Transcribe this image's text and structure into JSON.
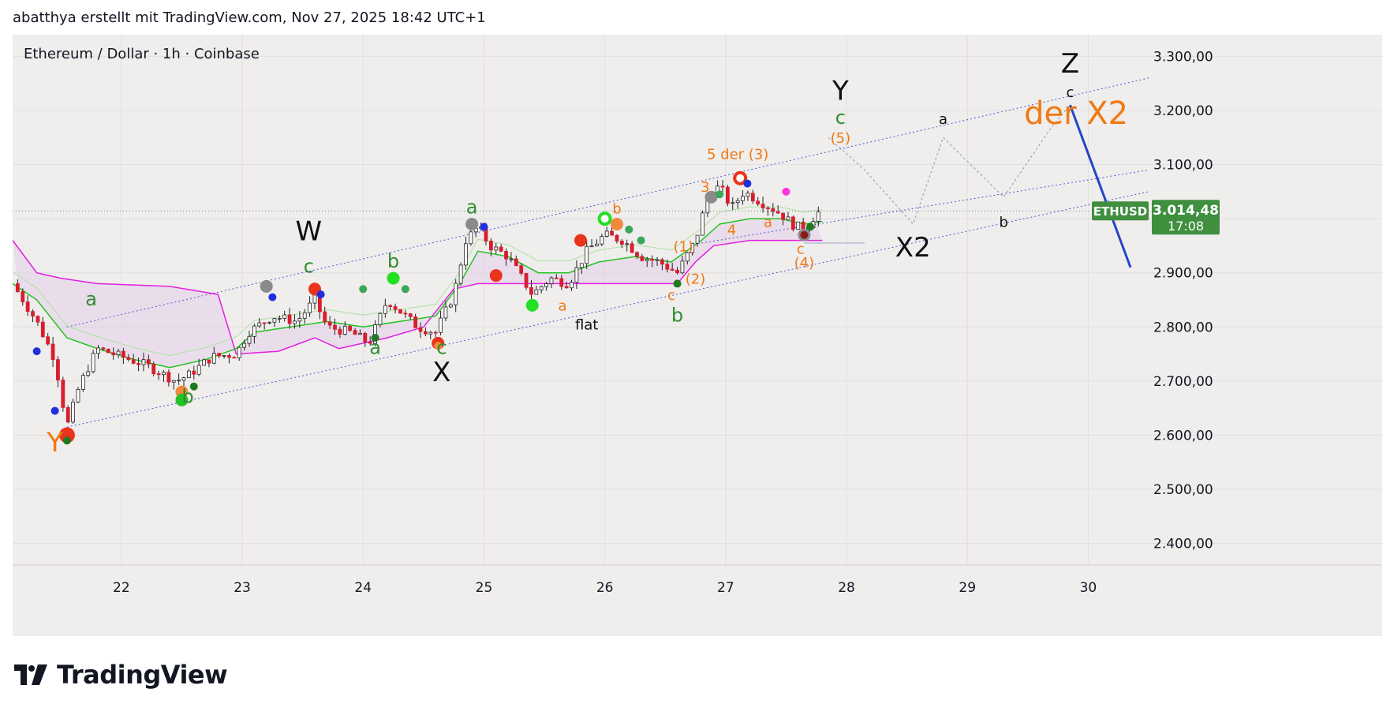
{
  "header": {
    "snapshot_credit": "abatthya erstellt mit TradingView.com, Nov 27, 2025 18:42 UTC+1"
  },
  "symbol": {
    "title": "Ethereum / Dollar · 1h · Coinbase"
  },
  "brand": {
    "name": "TradingView"
  },
  "colors": {
    "background": "#f0eded",
    "grid": "#e1dede",
    "up": "#ffffff",
    "down": "#d81e2d",
    "wick": "#222222",
    "green_line": "#22c322",
    "magenta_line": "#e21ee2",
    "channel": "#4a5bd0",
    "projection": "#9aa6c2",
    "forecast": "#2446c4",
    "price_badge": "#3f8f3f",
    "wave_black": "#111111",
    "wave_green": "#2f8f2f",
    "wave_orange": "#ef7a12"
  },
  "chart_data": {
    "type": "candlestick",
    "symbol": "ETHUSD",
    "exchange": "Coinbase",
    "interval": "1h",
    "x_axis": {
      "ticks": [
        "22",
        "23",
        "24",
        "25",
        "26",
        "27",
        "28",
        "29",
        "30"
      ],
      "range_days": [
        21.1,
        30.5
      ]
    },
    "y_axis": {
      "ticks": [
        "3.300,00",
        "3.200,00",
        "3.100,00",
        "3.000,00",
        "2.900,00",
        "2.800,00",
        "2.700,00",
        "2.600,00",
        "2.500,00",
        "2.400,00"
      ],
      "ylim": [
        2360,
        3340
      ]
    },
    "grid": true,
    "last_price": {
      "symbol_label": "ETHUSD",
      "value": 3014.48,
      "label": "3.014,48",
      "countdown": "17:08"
    },
    "price_path": [
      [
        21.1,
        2880
      ],
      [
        21.3,
        2810
      ],
      [
        21.45,
        2740
      ],
      [
        21.55,
        2615
      ],
      [
        21.65,
        2690
      ],
      [
        21.8,
        2760
      ],
      [
        22.0,
        2745
      ],
      [
        22.2,
        2730
      ],
      [
        22.45,
        2700
      ],
      [
        22.55,
        2710
      ],
      [
        22.75,
        2745
      ],
      [
        22.95,
        2750
      ],
      [
        23.05,
        2790
      ],
      [
        23.25,
        2820
      ],
      [
        23.45,
        2810
      ],
      [
        23.6,
        2850
      ],
      [
        23.7,
        2800
      ],
      [
        23.9,
        2790
      ],
      [
        24.05,
        2770
      ],
      [
        24.2,
        2850
      ],
      [
        24.3,
        2830
      ],
      [
        24.45,
        2800
      ],
      [
        24.6,
        2790
      ],
      [
        24.75,
        2860
      ],
      [
        24.85,
        2960
      ],
      [
        24.95,
        2985
      ],
      [
        25.05,
        2950
      ],
      [
        25.2,
        2930
      ],
      [
        25.4,
        2860
      ],
      [
        25.55,
        2890
      ],
      [
        25.7,
        2880
      ],
      [
        25.85,
        2940
      ],
      [
        26.0,
        2970
      ],
      [
        26.15,
        2960
      ],
      [
        26.3,
        2930
      ],
      [
        26.45,
        2920
      ],
      [
        26.6,
        2900
      ],
      [
        26.75,
        2960
      ],
      [
        26.85,
        3040
      ],
      [
        26.95,
        3060
      ],
      [
        27.05,
        3020
      ],
      [
        27.15,
        3050
      ],
      [
        27.3,
        3030
      ],
      [
        27.45,
        3010
      ],
      [
        27.55,
        2990
      ],
      [
        27.65,
        2980
      ],
      [
        27.75,
        3010
      ],
      [
        27.8,
        3014.48
      ]
    ],
    "indicators": {
      "green_line": [
        [
          21.1,
          2880
        ],
        [
          21.3,
          2850
        ],
        [
          21.55,
          2780
        ],
        [
          21.8,
          2760
        ],
        [
          22.1,
          2740
        ],
        [
          22.4,
          2725
        ],
        [
          22.7,
          2740
        ],
        [
          22.95,
          2760
        ],
        [
          23.1,
          2790
        ],
        [
          23.4,
          2800
        ],
        [
          23.7,
          2810
        ],
        [
          24.0,
          2800
        ],
        [
          24.3,
          2810
        ],
        [
          24.6,
          2820
        ],
        [
          24.8,
          2880
        ],
        [
          24.95,
          2940
        ],
        [
          25.2,
          2930
        ],
        [
          25.45,
          2900
        ],
        [
          25.7,
          2900
        ],
        [
          25.95,
          2920
        ],
        [
          26.25,
          2930
        ],
        [
          26.55,
          2920
        ],
        [
          26.8,
          2960
        ],
        [
          26.95,
          2990
        ],
        [
          27.2,
          3000
        ],
        [
          27.45,
          3000
        ],
        [
          27.65,
          2990
        ],
        [
          27.8,
          2995
        ]
      ],
      "magenta_line": [
        [
          21.1,
          2960
        ],
        [
          21.3,
          2900
        ],
        [
          21.5,
          2890
        ],
        [
          21.8,
          2880
        ],
        [
          22.4,
          2875
        ],
        [
          22.8,
          2860
        ],
        [
          22.95,
          2750
        ],
        [
          23.3,
          2755
        ],
        [
          23.6,
          2780
        ],
        [
          23.8,
          2760
        ],
        [
          24.2,
          2780
        ],
        [
          24.5,
          2800
        ],
        [
          24.75,
          2870
        ],
        [
          24.95,
          2880
        ],
        [
          25.4,
          2880
        ],
        [
          25.8,
          2880
        ],
        [
          26.2,
          2880
        ],
        [
          26.6,
          2880
        ],
        [
          26.75,
          2920
        ],
        [
          26.9,
          2950
        ],
        [
          27.2,
          2960
        ],
        [
          27.5,
          2960
        ],
        [
          27.8,
          2960
        ]
      ]
    },
    "channel": {
      "upper": [
        [
          21.55,
          2800
        ],
        [
          30.5,
          3260
        ]
      ],
      "middle": [
        [
          26.8,
          2955
        ],
        [
          30.5,
          3090
        ]
      ],
      "lower": [
        [
          21.55,
          2615
        ],
        [
          30.5,
          3050
        ]
      ]
    },
    "projection_path": [
      [
        27.85,
        3150
      ],
      [
        28.15,
        3090
      ],
      [
        28.55,
        2990
      ],
      [
        28.8,
        3150
      ],
      [
        29.3,
        3040
      ],
      [
        29.7,
        3170
      ],
      [
        29.85,
        3210
      ]
    ],
    "forecast_line": [
      [
        29.85,
        3210
      ],
      [
        30.35,
        2910
      ]
    ],
    "wave_labels": [
      {
        "text": "Y",
        "x": 21.45,
        "y": 2570,
        "color": "orange",
        "size": "large"
      },
      {
        "text": "a",
        "x": 21.75,
        "y": 2840,
        "color": "green",
        "size": "medium"
      },
      {
        "text": "b",
        "x": 22.55,
        "y": 2660,
        "color": "green",
        "size": "medium"
      },
      {
        "text": "W",
        "x": 23.55,
        "y": 2960,
        "color": "black",
        "size": "large"
      },
      {
        "text": "c",
        "x": 23.55,
        "y": 2900,
        "color": "green",
        "size": "medium"
      },
      {
        "text": "a",
        "x": 24.1,
        "y": 2750,
        "color": "green",
        "size": "medium"
      },
      {
        "text": "b",
        "x": 24.25,
        "y": 2910,
        "color": "green",
        "size": "medium"
      },
      {
        "text": "c",
        "x": 24.65,
        "y": 2750,
        "color": "green",
        "size": "medium"
      },
      {
        "text": "X",
        "x": 24.65,
        "y": 2700,
        "color": "black",
        "size": "large"
      },
      {
        "text": "a",
        "x": 24.9,
        "y": 3010,
        "color": "green",
        "size": "medium"
      },
      {
        "text": "a",
        "x": 25.65,
        "y": 2830,
        "color": "orange",
        "size": "small"
      },
      {
        "text": "flat",
        "x": 25.85,
        "y": 2795,
        "color": "black",
        "size": "small"
      },
      {
        "text": "b",
        "x": 26.1,
        "y": 3010,
        "color": "orange",
        "size": "small"
      },
      {
        "text": "c",
        "x": 26.55,
        "y": 2850,
        "color": "orange",
        "size": "small"
      },
      {
        "text": "b",
        "x": 26.6,
        "y": 2810,
        "color": "green",
        "size": "medium"
      },
      {
        "text": "(1)",
        "x": 26.65,
        "y": 2940,
        "color": "orange",
        "size": "small"
      },
      {
        "text": "(2)",
        "x": 26.75,
        "y": 2880,
        "color": "orange",
        "size": "small"
      },
      {
        "text": "3",
        "x": 26.83,
        "y": 3050,
        "color": "orange",
        "size": "small"
      },
      {
        "text": "4",
        "x": 27.05,
        "y": 2970,
        "color": "orange",
        "size": "small"
      },
      {
        "text": "5 der (3)",
        "x": 27.1,
        "y": 3110,
        "color": "orange",
        "size": "small"
      },
      {
        "text": "a",
        "x": 27.35,
        "y": 2985,
        "color": "orange",
        "size": "small"
      },
      {
        "text": "c",
        "x": 27.62,
        "y": 2935,
        "color": "orange",
        "size": "small"
      },
      {
        "text": "(4)",
        "x": 27.65,
        "y": 2910,
        "color": "orange",
        "size": "small"
      },
      {
        "text": "Y",
        "x": 27.95,
        "y": 3220,
        "color": "black",
        "size": "large"
      },
      {
        "text": "c",
        "x": 27.95,
        "y": 3175,
        "color": "green",
        "size": "medium"
      },
      {
        "text": "(5)",
        "x": 27.95,
        "y": 3140,
        "color": "orange",
        "size": "small"
      },
      {
        "text": "X2",
        "x": 28.55,
        "y": 2930,
        "color": "black",
        "size": "large"
      },
      {
        "text": "a",
        "x": 28.8,
        "y": 3175,
        "color": "black",
        "size": "small"
      },
      {
        "text": "b",
        "x": 29.3,
        "y": 2985,
        "color": "black",
        "size": "small"
      },
      {
        "text": "Z",
        "x": 29.85,
        "y": 3270,
        "color": "black",
        "size": "large"
      },
      {
        "text": "c",
        "x": 29.85,
        "y": 3225,
        "color": "black",
        "size": "small"
      },
      {
        "text": "der X2",
        "x": 29.9,
        "y": 3175,
        "color": "orange",
        "size": "xlarge"
      }
    ],
    "signal_markers": [
      {
        "x": 21.55,
        "y": 2600,
        "color": "#e8341c",
        "size": "large"
      },
      {
        "x": 21.55,
        "y": 2590,
        "color": "#1e7a1e",
        "size": "small"
      },
      {
        "x": 21.3,
        "y": 2755,
        "color": "#1f2fe0",
        "size": "small"
      },
      {
        "x": 21.45,
        "y": 2645,
        "color": "#1f2fe0",
        "size": "small"
      },
      {
        "x": 22.5,
        "y": 2680,
        "color": "#f08a3c",
        "size": "medium"
      },
      {
        "x": 22.5,
        "y": 2665,
        "color": "#22c322",
        "size": "medium"
      },
      {
        "x": 22.6,
        "y": 2690,
        "color": "#1e7a1e",
        "size": "small"
      },
      {
        "x": 23.2,
        "y": 2875,
        "color": "#8a8a8a",
        "size": "medium"
      },
      {
        "x": 23.25,
        "y": 2855,
        "color": "#1f2fe0",
        "size": "small"
      },
      {
        "x": 23.6,
        "y": 2870,
        "color": "#e8341c",
        "size": "medium"
      },
      {
        "x": 23.65,
        "y": 2860,
        "color": "#1f2fe0",
        "size": "small"
      },
      {
        "x": 24.0,
        "y": 2870,
        "color": "#3aa85a",
        "size": "small"
      },
      {
        "x": 24.25,
        "y": 2890,
        "color": "#22e022",
        "size": "medium"
      },
      {
        "x": 24.35,
        "y": 2870,
        "color": "#3aa85a",
        "size": "small"
      },
      {
        "x": 24.1,
        "y": 2780,
        "color": "#1e7a1e",
        "size": "small"
      },
      {
        "x": 24.62,
        "y": 2770,
        "color": "#e8341c",
        "size": "medium"
      },
      {
        "x": 24.62,
        "y": 2765,
        "color": "#f08a3c",
        "size": "small"
      },
      {
        "x": 24.9,
        "y": 2990,
        "color": "#8a8a8a",
        "size": "medium"
      },
      {
        "x": 25.0,
        "y": 2985,
        "color": "#1f2fe0",
        "size": "small"
      },
      {
        "x": 25.1,
        "y": 2895,
        "color": "#e8341c",
        "size": "medium"
      },
      {
        "x": 25.4,
        "y": 2840,
        "color": "#22e022",
        "size": "medium"
      },
      {
        "x": 25.8,
        "y": 2960,
        "color": "#e8341c",
        "size": "medium"
      },
      {
        "x": 26.0,
        "y": 3000,
        "color": "#22e022",
        "size": "ring"
      },
      {
        "x": 26.1,
        "y": 2990,
        "color": "#f08a3c",
        "size": "medium"
      },
      {
        "x": 26.2,
        "y": 2980,
        "color": "#3aa85a",
        "size": "small"
      },
      {
        "x": 26.3,
        "y": 2960,
        "color": "#3aa85a",
        "size": "small"
      },
      {
        "x": 26.6,
        "y": 2880,
        "color": "#1e7a1e",
        "size": "small"
      },
      {
        "x": 26.88,
        "y": 3040,
        "color": "#8a8a8a",
        "size": "medium"
      },
      {
        "x": 26.95,
        "y": 3045,
        "color": "#3aa85a",
        "size": "small"
      },
      {
        "x": 27.12,
        "y": 3075,
        "color": "#e8341c",
        "size": "ring"
      },
      {
        "x": 27.18,
        "y": 3065,
        "color": "#1f2fe0",
        "size": "small"
      },
      {
        "x": 27.5,
        "y": 3050,
        "color": "#ff33dd",
        "size": "small"
      },
      {
        "x": 27.65,
        "y": 2970,
        "color": "#8a8a8a",
        "size": "medium"
      },
      {
        "x": 27.65,
        "y": 2970,
        "color": "#8b1a1a",
        "size": "small"
      },
      {
        "x": 27.7,
        "y": 2985,
        "color": "#1e7a1e",
        "size": "small"
      }
    ]
  }
}
